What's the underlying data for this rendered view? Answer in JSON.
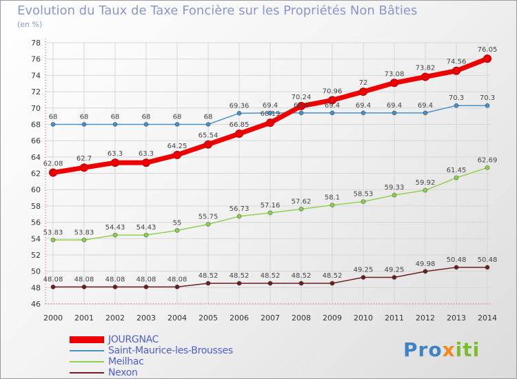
{
  "title": "Evolution du Taux de Taxe Foncière sur les Propriétés Non Bâties",
  "unit": "(en %)",
  "logo": {
    "text": "Proxiti",
    "colors": [
      "#3f83c6",
      "#f08a1c",
      "#7cbd2e"
    ]
  },
  "chart_data": {
    "type": "line",
    "title": "Evolution du Taux de Taxe Foncière sur les Propriétés Non Bâties",
    "ylabel": "(en %)",
    "xlabel": "",
    "ylim": [
      46,
      78
    ],
    "yticks": [
      46,
      48,
      50,
      52,
      54,
      56,
      58,
      60,
      62,
      64,
      66,
      68,
      70,
      72,
      74,
      76,
      78
    ],
    "grid": true,
    "legend_position": "bottom-left",
    "x": [
      "2000",
      "2001",
      "2002",
      "2003",
      "2004",
      "2005",
      "2006",
      "2007",
      "2008",
      "2009",
      "2010",
      "2011",
      "2012",
      "2013",
      "2014"
    ],
    "series": [
      {
        "name": "Saint-Maurice-les-Brousses",
        "color": "#4a90c8",
        "values": [
          68,
          68,
          68,
          68,
          68,
          68,
          69.36,
          69.4,
          69.4,
          69.4,
          69.4,
          69.4,
          69.4,
          70.3,
          70.3
        ],
        "labels": [
          "68",
          "68",
          "68",
          "68",
          "68",
          "68",
          "69.36",
          "69.4",
          "69.4",
          "69.4",
          "69.4",
          "69.4",
          "69.4",
          "70.3",
          "70.3"
        ]
      },
      {
        "name": "Meilhac",
        "color": "#8fd14f",
        "values": [
          53.83,
          53.83,
          54.43,
          54.43,
          55,
          55.75,
          56.73,
          57.16,
          57.62,
          58.1,
          58.53,
          59.33,
          59.92,
          61.45,
          62.69
        ],
        "labels": [
          "53.83",
          "53.83",
          "54.43",
          "54.43",
          "55",
          "55.75",
          "56.73",
          "57.16",
          "57.62",
          "58.1",
          "58.53",
          "59.33",
          "59.92",
          "61.45",
          "62.69"
        ]
      },
      {
        "name": "Nexon",
        "color": "#6b1f1f",
        "values": [
          48.08,
          48.08,
          48.08,
          48.08,
          48.08,
          48.52,
          48.52,
          48.52,
          48.52,
          48.52,
          49.25,
          49.25,
          49.98,
          50.48,
          50.48
        ],
        "labels": [
          "48.08",
          "48.08",
          "48.08",
          "48.08",
          "48.08",
          "48.52",
          "48.52",
          "48.52",
          "48.52",
          "48.52",
          "49.25",
          "49.25",
          "49.98",
          "50.48",
          "50.48"
        ]
      },
      {
        "name": "JOURGNAC",
        "color": "#ee0000",
        "values": [
          62.08,
          62.7,
          63.3,
          63.3,
          64.25,
          65.54,
          66.85,
          68.19,
          70.24,
          70.96,
          72,
          73.08,
          73.82,
          74.56,
          76.05
        ],
        "labels": [
          "62.08",
          "62.7",
          "63.3",
          "63.3",
          "64.25",
          "65.54",
          "66.85",
          "68.19",
          "70.24",
          "70.96",
          "72",
          "73.08",
          "73.82",
          "74.56",
          "76.05"
        ]
      }
    ],
    "legend": [
      "JOURGNAC",
      "Saint-Maurice-les-Brousses",
      "Meilhac",
      "Nexon"
    ]
  }
}
